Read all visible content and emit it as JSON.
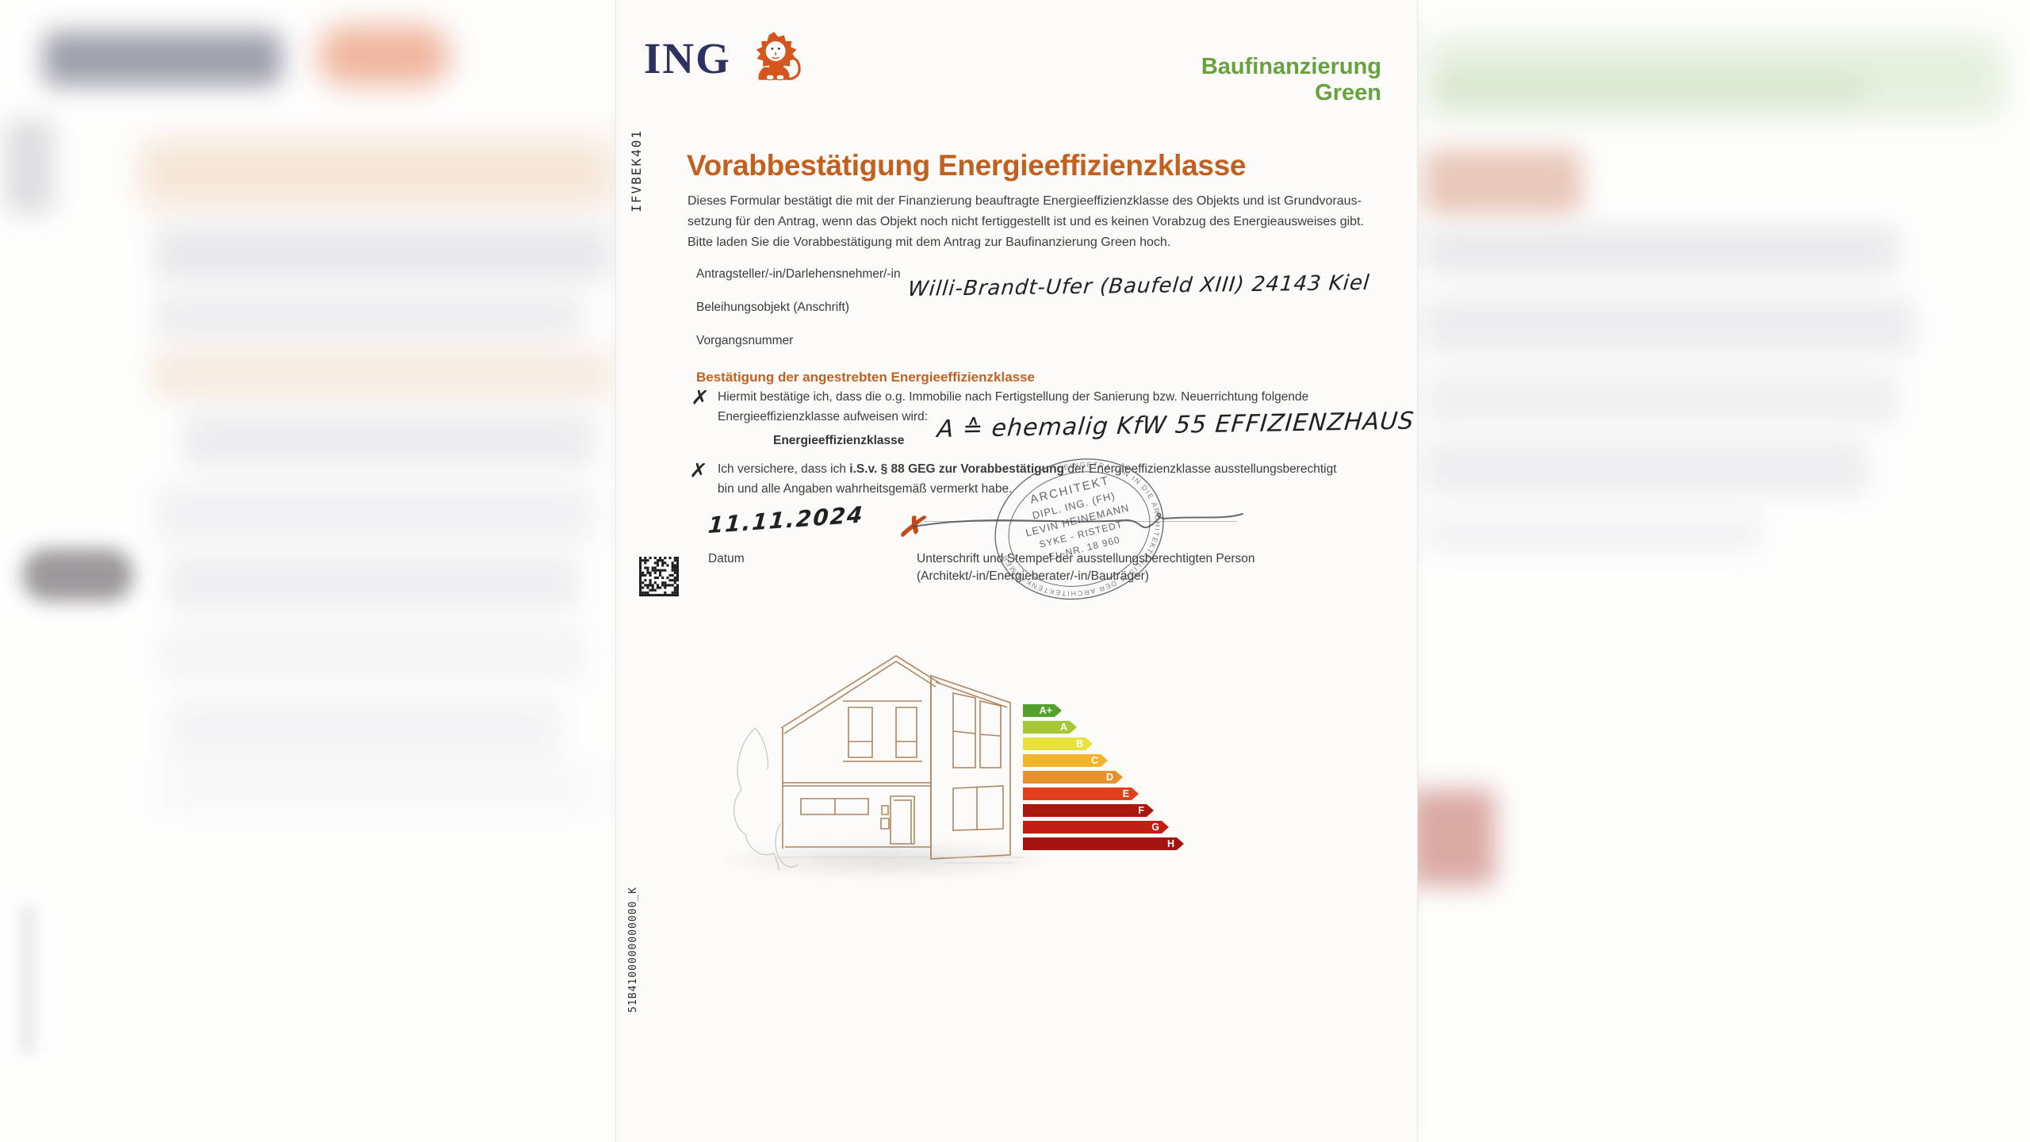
{
  "brand": {
    "name": "ING",
    "lion_icon": "ing-lion",
    "product": "Baufinanzierung Green"
  },
  "codes": {
    "top_left_vertical": "IFVBEK401",
    "bottom_left_vertical": "51B4100000000000_K"
  },
  "document": {
    "title": "Vorabbestätigung Energieeffizienzklasse",
    "intro": {
      "line1": "Dieses Formular bestätigt die mit der Finanzierung beauftragte Energieeffizienzklasse des Objekts und ist Grundvoraus-",
      "line2": "setzung für den Antrag, wenn das Objekt noch nicht fertiggestellt ist und es keinen Vorabzug des Energieausweises gibt.",
      "line3": "Bitte laden Sie die Vorabbestätigung mit dem Antrag zur Baufinanzierung Green hoch."
    },
    "fields": {
      "applicant_label": "Antragsteller/-in/Darlehensnehmer/-in",
      "property_label": "Beleihungsobjekt (Anschrift)",
      "property_value_handwritten": "Willi-Brandt-Ufer (Baufeld XIII) 24143 Kiel",
      "case_number_label": "Vorgangsnummer"
    },
    "confirmation": {
      "heading": "Bestätigung der angestrebten Energieeffizienzklasse",
      "checkbox1_mark": "✗",
      "checkbox1_line1": "Hiermit bestätige ich, dass die o.g. Immobilie nach Fertigstellung der Sanierung bzw. Neuerrichtung folgende",
      "checkbox1_line2": "Energieeffizienzklasse aufweisen wird:",
      "energy_class_label": "Energieeffizienzklasse",
      "energy_class_value_handwritten": "A ≙ ehemalig KfW 55 EFFIZIENZHAUS",
      "checkbox2_mark": "✗",
      "checkbox2_pre": "Ich versichere, dass ich ",
      "checkbox2_bold": "i.S.v. § 88 GEG zur Vorabbestätigung",
      "checkbox2_post": " der Energieeffizienzklasse ausstellungsberechtigt",
      "checkbox2_line2": "bin und alle Angaben wahrheitsgemäß vermerkt habe."
    },
    "signature_block": {
      "date_handwritten": "11.11.2024",
      "date_label": "Datum",
      "signature_x_mark": "✗",
      "label_line1": "Unterschrift und Stempel der ausstellungsberechtigten Person",
      "label_line2": "(Architekt/-in/Energieberater/-in/Bauträger)",
      "stamp": {
        "line1": "ARCHITEKT",
        "line2": "DIPL. ING. (FH)",
        "line3": "LEVIN HEINEMANN",
        "line4": "SYKE - RISTEDT",
        "line5": "EL-NR. 18 960",
        "ring_text": "EINGETRAGEN IN DIE ARCHITEKTENLISTE DER ARCHITEKTENKAMMER"
      }
    }
  },
  "energy_scale": {
    "classes": [
      {
        "label": "A+",
        "color": "#53a02d"
      },
      {
        "label": "A",
        "color": "#a6c836"
      },
      {
        "label": "B",
        "color": "#e9e23a"
      },
      {
        "label": "C",
        "color": "#f2b42a"
      },
      {
        "label": "D",
        "color": "#e5912d"
      },
      {
        "label": "E",
        "color": "#e23f1f"
      },
      {
        "label": "F",
        "color": "#a9170f"
      },
      {
        "label": "G",
        "color": "#c11f14"
      },
      {
        "label": "H",
        "color": "#a51310"
      }
    ]
  },
  "colors": {
    "brand_navy": "#2f3161",
    "brand_orange": "#d4561e",
    "product_green": "#66a23e",
    "heading_orange": "#c2601f",
    "handwriting": "#23211e",
    "signature_x_red": "#c3491c",
    "stamp_gray": "#50505a"
  }
}
